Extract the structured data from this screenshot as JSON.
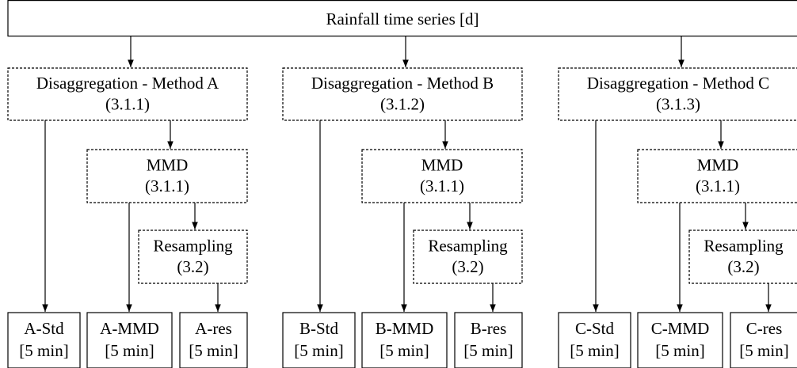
{
  "title": "Rainfall time series [d]",
  "columns": [
    {
      "method": {
        "label": "Disaggregation - Method A",
        "section": "(3.1.1)"
      },
      "mmd": {
        "label": "MMD",
        "section": "(3.1.1)"
      },
      "resampling": {
        "label": "Resampling",
        "section": "(3.2)"
      },
      "outputs": [
        {
          "name": "A-Std",
          "resolution": "[5 min]"
        },
        {
          "name": "A-MMD",
          "resolution": "[5 min]"
        },
        {
          "name": "A-res",
          "resolution": "[5 min]"
        }
      ]
    },
    {
      "method": {
        "label": "Disaggregation - Method B",
        "section": "(3.1.2)"
      },
      "mmd": {
        "label": "MMD",
        "section": "(3.1.1)"
      },
      "resampling": {
        "label": "Resampling",
        "section": "(3.2)"
      },
      "outputs": [
        {
          "name": "B-Std",
          "resolution": "[5 min]"
        },
        {
          "name": "B-MMD",
          "resolution": "[5 min]"
        },
        {
          "name": "B-res",
          "resolution": "[5 min]"
        }
      ]
    },
    {
      "method": {
        "label": "Disaggregation - Method C",
        "section": "(3.1.3)"
      },
      "mmd": {
        "label": "MMD",
        "section": "(3.1.1)"
      },
      "resampling": {
        "label": "Resampling",
        "section": "(3.2)"
      },
      "outputs": [
        {
          "name": "C-Std",
          "resolution": "[5 min]"
        },
        {
          "name": "C-MMD",
          "resolution": "[5 min]"
        },
        {
          "name": "C-res",
          "resolution": "[5 min]"
        }
      ]
    }
  ]
}
